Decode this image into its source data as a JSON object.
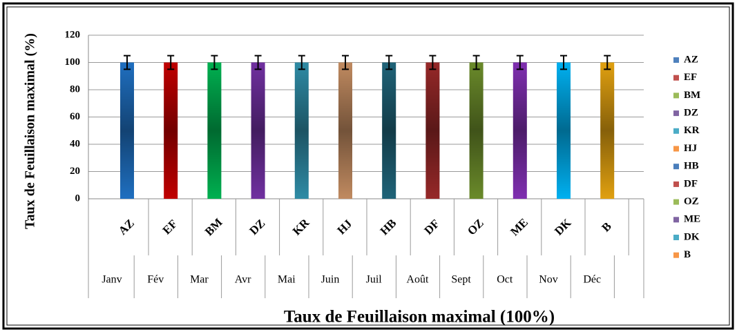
{
  "chart_data": {
    "type": "bar",
    "y_label": "Taux de Feuillaison maximal (%)",
    "x_label": "Taux de Feuillaison maximal (100%)",
    "categories": [
      "AZ",
      "EF",
      "BM",
      "DZ",
      "KR",
      "HJ",
      "HB",
      "DF",
      "OZ",
      "ME",
      "DK",
      "B"
    ],
    "groups": [
      "Janv",
      "Fév",
      "Mar",
      "Avr",
      "Mai",
      "Juin",
      "Juil",
      "Août",
      "Sept",
      "Oct",
      "Nov",
      "Déc"
    ],
    "values": [
      100,
      100,
      100,
      100,
      100,
      100,
      100,
      100,
      100,
      100,
      100,
      100
    ],
    "errors": [
      5,
      5,
      5,
      5,
      5,
      5,
      5,
      5,
      5,
      5,
      5,
      5
    ],
    "colors": [
      "#1f6fc0",
      "#c00000",
      "#00b050",
      "#7030a0",
      "#2e8ba5",
      "#c08a60",
      "#1f6378",
      "#962828",
      "#6a8a2a",
      "#7f2fb0",
      "#00b0f0",
      "#e0a010"
    ],
    "ylim": [
      0,
      120
    ],
    "yticks": [
      0,
      20,
      40,
      60,
      80,
      100,
      120
    ],
    "grid": true,
    "legend": {
      "position": "right",
      "items": [
        {
          "name": "AZ",
          "color": "#4f81bd"
        },
        {
          "name": "EF",
          "color": "#c0504d"
        },
        {
          "name": "BM",
          "color": "#9bbb59"
        },
        {
          "name": "DZ",
          "color": "#8064a2"
        },
        {
          "name": "KR",
          "color": "#4bacc6"
        },
        {
          "name": "HJ",
          "color": "#f79646"
        },
        {
          "name": "HB",
          "color": "#4a7ebb"
        },
        {
          "name": "DF",
          "color": "#c0504d"
        },
        {
          "name": "OZ",
          "color": "#9bbb59"
        },
        {
          "name": "ME",
          "color": "#8064a2"
        },
        {
          "name": "DK",
          "color": "#4bacc6"
        },
        {
          "name": "B",
          "color": "#f79646"
        }
      ]
    }
  }
}
